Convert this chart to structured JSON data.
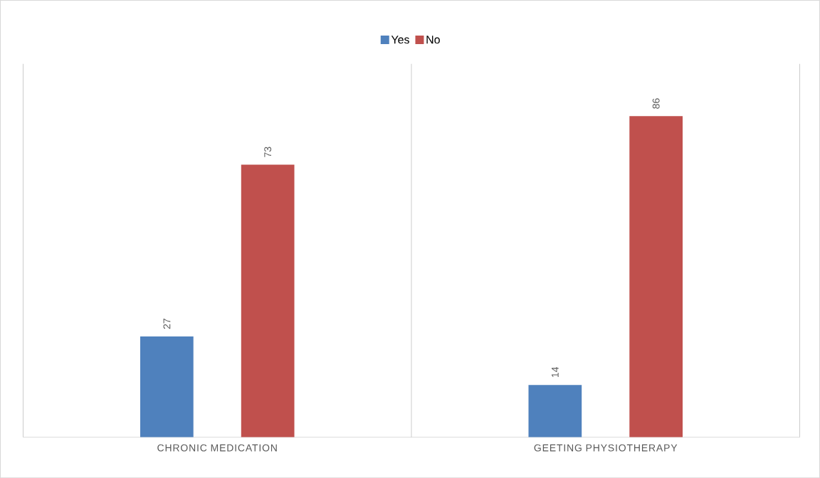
{
  "chart_data": {
    "type": "bar",
    "categories": [
      "CHRONIC MEDICATION",
      "GEETING PHYSIOTHERAPY"
    ],
    "series": [
      {
        "name": "Yes",
        "color": "#4f81bd",
        "values": [
          27,
          14
        ]
      },
      {
        "name": "No",
        "color": "#c0504d",
        "values": [
          73,
          86
        ]
      }
    ],
    "data_labels": true,
    "legend": "top",
    "grid": "x"
  }
}
